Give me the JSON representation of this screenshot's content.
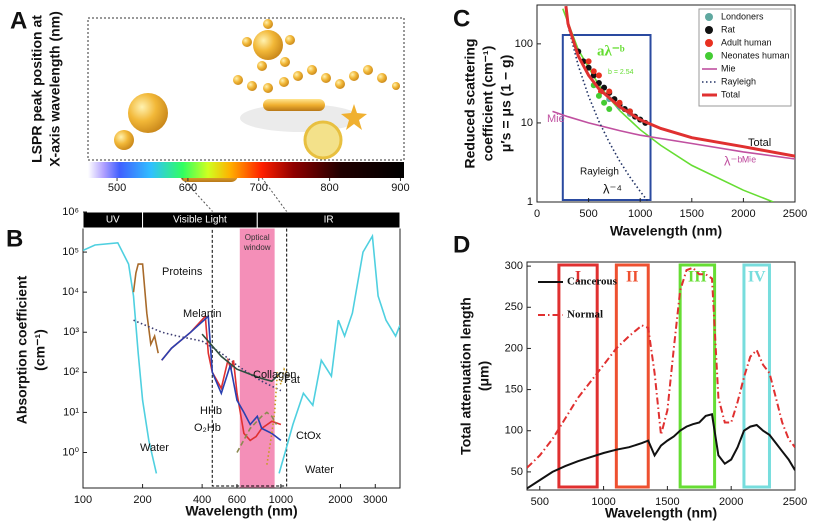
{
  "chart_data": [
    {
      "type": "spectrum",
      "panel_label": "A",
      "ylabel": [
        "LSPR peak position at",
        "X-axis wavelength (nm)"
      ],
      "xlim": [
        459,
        905
      ],
      "xticks": [
        500,
        600,
        700,
        800,
        900
      ]
    },
    {
      "type": "line",
      "panel_label": "B",
      "xlabel": "Wavelength (nm)",
      "ylabel": [
        "Absorption  coefficient",
        "(cm⁻¹)"
      ],
      "xlog": true,
      "ylog": true,
      "xlim": [
        100,
        4000
      ],
      "ylim": [
        0.13,
        1000000
      ],
      "xticks": [
        100,
        200,
        400,
        600,
        1000,
        2000,
        3000
      ],
      "yticks": [
        {
          "value": 1,
          "label": "10⁰"
        },
        {
          "value": 10,
          "label": "10¹"
        },
        {
          "value": 100,
          "label": "10²"
        },
        {
          "value": 1000,
          "label": "10³"
        },
        {
          "value": 10000,
          "label": "10⁴"
        },
        {
          "value": 100000,
          "label": "10⁵"
        },
        {
          "value": 1000000,
          "label": "10⁶"
        }
      ],
      "bands": [
        {
          "label": "UV",
          "range": [
            100,
            200
          ]
        },
        {
          "label": "Visible Light",
          "range": [
            200,
            760
          ]
        },
        {
          "label": "IR",
          "range": [
            760,
            4000
          ]
        }
      ],
      "window": {
        "label": [
          "Optical",
          "window"
        ],
        "range": [
          620,
          930
        ],
        "color": "#f06aa0"
      },
      "highlight": {
        "range": [
          450,
          1070
        ],
        "color": "#000000"
      },
      "series": [
        {
          "name": "Water",
          "color": "#4fd0e0",
          "dash": "solid",
          "mode": "line",
          "x": [
            100,
            115,
            150,
            170,
            180,
            190,
            200,
            215,
            235,
            600,
            980,
            1050,
            1150,
            1300,
            1450,
            1600,
            1800,
            1950,
            2100,
            2300,
            2600,
            2900,
            3100,
            3400,
            3800,
            4000
          ],
          "values": [
            110000,
            150000,
            170000,
            50000,
            8000,
            300,
            20,
            2,
            0.3,
            null,
            0.3,
            1,
            5,
            30,
            15,
            200,
            80,
            2000,
            800,
            3000,
            100000,
            250000,
            8000,
            2000,
            800,
            1500
          ]
        },
        {
          "name": "Proteins",
          "color": "#a86a2a",
          "dash": "solid",
          "mode": "line",
          "x": [
            180,
            185,
            190,
            200,
            210,
            220,
            230,
            240
          ],
          "values": [
            10000,
            30000,
            50000,
            50000,
            3000,
            500,
            800,
            300
          ]
        },
        {
          "name": "Melanin",
          "color": "#3a3a70",
          "dash": "dotted",
          "mode": "line",
          "x": [
            180,
            250,
            300,
            400,
            500,
            600,
            700,
            800,
            900,
            1000
          ],
          "values": [
            2000,
            1000,
            800,
            600,
            300,
            150,
            90,
            60,
            45,
            35
          ]
        },
        {
          "name": "O₂Hb",
          "color": "#e03030",
          "dash": "solid",
          "mode": "line",
          "x": [
            250,
            280,
            350,
            415,
            430,
            450,
            500,
            540,
            560,
            576,
            600,
            650,
            700,
            750,
            800,
            900,
            1000
          ],
          "values": [
            200,
            400,
            1000,
            2500,
            300,
            100,
            40,
            200,
            120,
            200,
            30,
            3,
            2,
            2.5,
            4,
            6,
            5
          ]
        },
        {
          "name": "HHb",
          "color": "#2a40b0",
          "dash": "solid",
          "mode": "line",
          "x": [
            250,
            280,
            350,
            430,
            450,
            500,
            555,
            600,
            650,
            700,
            760,
            800,
            900,
            1000
          ],
          "values": [
            200,
            400,
            1000,
            2500,
            100,
            30,
            150,
            20,
            10,
            5,
            8,
            4,
            3,
            2
          ]
        },
        {
          "name": "Collagen",
          "color": "#2f4f3f",
          "dash": "solid",
          "mode": "line",
          "x": [
            400,
            500,
            600,
            700,
            800,
            900,
            1000
          ],
          "values": [
            900,
            250,
            120,
            90,
            70,
            60,
            100
          ]
        },
        {
          "name": "Fat",
          "color": "#c89a20",
          "dash": "dotted",
          "mode": "line",
          "x": [
            850,
            900,
            930,
            960,
            1000,
            1040,
            1100
          ],
          "values": [
            0.5,
            3,
            10,
            100,
            50,
            120,
            80
          ]
        },
        {
          "name": "CtOx",
          "color": "#8a8a50",
          "dash": "dashed",
          "mode": "line",
          "x": [
            600,
            700,
            800,
            850,
            900,
            950
          ],
          "values": [
            1,
            4,
            8,
            10,
            8,
            5
          ]
        }
      ],
      "annotations": [
        "Water"
      ]
    },
    {
      "type": "line",
      "panel_label": "C",
      "xlabel": "Wavelength (nm)",
      "ylabel": [
        "Reduced scattering",
        "coefficient (cm⁻¹)",
        "μ′s = μs (1 − g)"
      ],
      "ylog": true,
      "xlim": [
        0,
        2500
      ],
      "ylim": [
        1,
        310
      ],
      "xticks": [
        0,
        500,
        1000,
        1500,
        2000,
        2500
      ],
      "yticks": [
        1,
        10,
        100
      ],
      "legend": "upper right",
      "highlight": {
        "range": [
          250,
          1100
        ],
        "color": "#2a4aa0"
      },
      "fit": {
        "label": "aλ⁻ᵇ",
        "note": "b = 2.54",
        "color": "#66dd33",
        "x": [
          250,
          400,
          600,
          800,
          1000,
          1200,
          1500,
          2000,
          2290
        ],
        "values": [
          278,
          84,
          30,
          14.4,
          8.2,
          5.2,
          2.9,
          1.41,
          1
        ]
      },
      "series": [
        {
          "name": "Londoners",
          "color": "#5fa8a0",
          "mode": "scatter",
          "x": [
            700,
            800,
            900,
            1000
          ],
          "values": [
            20,
            16,
            13,
            11
          ]
        },
        {
          "name": "Rat",
          "color": "#111111",
          "mode": "scatter",
          "x": [
            400,
            450,
            500,
            550,
            600,
            650,
            700,
            750,
            800,
            850,
            900,
            950,
            1000,
            1050
          ],
          "values": [
            80,
            60,
            50,
            40,
            32,
            28,
            24,
            20,
            17,
            15,
            14,
            12,
            11,
            10
          ]
        },
        {
          "name": "Adult human",
          "color": "#e83020",
          "mode": "scatter",
          "x": [
            500,
            550,
            600,
            620,
            700,
            800,
            900
          ],
          "values": [
            60,
            45,
            40,
            25,
            25,
            18,
            14
          ]
        },
        {
          "name": "Neonates human",
          "color": "#44cc33",
          "mode": "scatter",
          "x": [
            550,
            600,
            650,
            700
          ],
          "values": [
            30,
            22,
            18,
            15
          ]
        },
        {
          "name": "Mie",
          "color": "#c050a0",
          "dash": "solid",
          "mode": "line",
          "x": [
            150,
            300,
            500,
            800,
            1000,
            1500,
            2000,
            2500
          ],
          "values": [
            14,
            12,
            10,
            8,
            7,
            5.5,
            4.3,
            3.5
          ]
        },
        {
          "name": "Rayleigh",
          "color": "#223366",
          "dash": "dotted",
          "mode": "line",
          "x": [
            300,
            400,
            500,
            600,
            700,
            800,
            900,
            1000,
            1080
          ],
          "values": [
            168,
            53,
            21.8,
            10.5,
            5.7,
            3.3,
            2.07,
            1.36,
            1
          ]
        },
        {
          "name": "Total",
          "color": "#e03030",
          "dash": "solid",
          "width": 3,
          "mode": "line",
          "x": [
            280,
            300,
            400,
            500,
            600,
            800,
            1000,
            1200,
            1500,
            2000,
            2500
          ],
          "values": [
            300,
            180,
            70,
            40,
            27,
            16,
            11,
            8.5,
            6.5,
            5,
            3.8
          ]
        }
      ],
      "annotations": [
        "Mie",
        "Total",
        "λ⁻ᵇᴹⁱᵉ",
        "Rayleigh",
        "λ⁻⁴"
      ]
    },
    {
      "type": "line",
      "panel_label": "D",
      "xlabel": "Wavelength (nm)",
      "ylabel": [
        "Total attenuation length",
        "(μm)"
      ],
      "xlim": [
        400,
        2500
      ],
      "ylim": [
        28,
        305
      ],
      "xticks": [
        500,
        1000,
        1500,
        2000,
        2500
      ],
      "yticks": [
        50,
        100,
        150,
        200,
        250,
        300
      ],
      "legend": "upper left",
      "regions": [
        {
          "label": "I",
          "range": [
            650,
            950
          ],
          "color": "#e03030"
        },
        {
          "label": "II",
          "range": [
            1100,
            1350
          ],
          "color": "#ee5030"
        },
        {
          "label": "III",
          "range": [
            1600,
            1870
          ],
          "color": "#66dd33"
        },
        {
          "label": "IV",
          "range": [
            2100,
            2300
          ],
          "color": "#77dddd"
        }
      ],
      "x": [
        400,
        500,
        600,
        700,
        800,
        900,
        1000,
        1100,
        1200,
        1300,
        1350,
        1400,
        1450,
        1500,
        1550,
        1600,
        1650,
        1700,
        1750,
        1800,
        1850,
        1900,
        1950,
        2000,
        2050,
        2100,
        2150,
        2200,
        2250,
        2300,
        2350,
        2400,
        2450,
        2500
      ],
      "series": [
        {
          "name": "Cancerous",
          "color": "#111111",
          "dash": "solid",
          "width": 2,
          "mode": "line",
          "values": [
            30,
            40,
            50,
            57,
            63,
            68,
            73,
            77,
            80,
            85,
            88,
            70,
            82,
            88,
            93,
            100,
            105,
            108,
            110,
            118,
            120,
            70,
            60,
            65,
            80,
            100,
            105,
            107,
            100,
            95,
            85,
            75,
            65,
            52
          ]
        },
        {
          "name": "Normal",
          "color": "#e03030",
          "dash": "dashdot",
          "width": 2,
          "mode": "line",
          "values": [
            55,
            70,
            90,
            115,
            140,
            160,
            180,
            200,
            215,
            228,
            225,
            170,
            95,
            125,
            200,
            270,
            295,
            298,
            290,
            290,
            285,
            140,
            110,
            110,
            135,
            165,
            190,
            198,
            180,
            170,
            140,
            110,
            90,
            80
          ]
        }
      ]
    }
  ]
}
